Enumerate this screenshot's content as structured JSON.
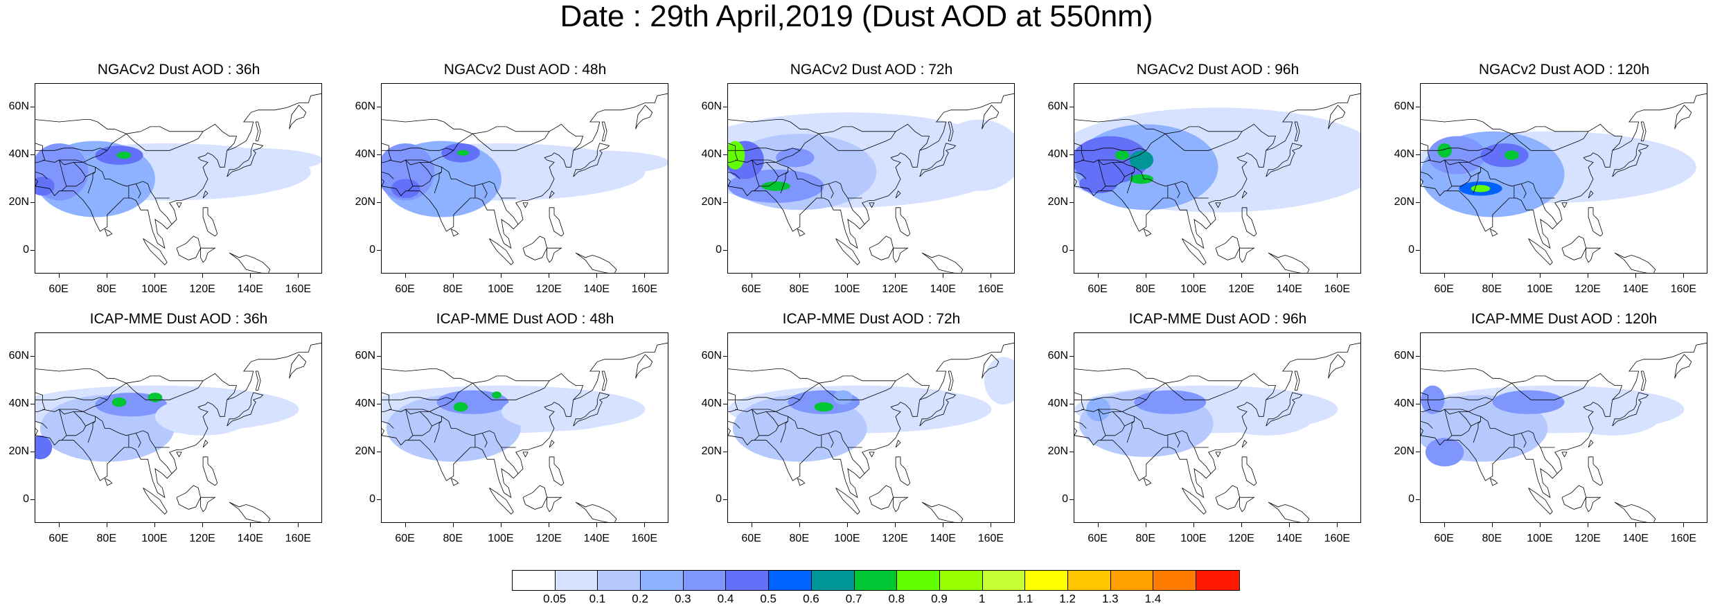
{
  "title": "Date : 29th April,2019 (Dust AOD at 550nm)",
  "panels": [
    {
      "title": "NGACv2 Dust AOD : 36h"
    },
    {
      "title": "NGACv2 Dust AOD : 48h"
    },
    {
      "title": "NGACv2 Dust AOD : 72h"
    },
    {
      "title": "NGACv2 Dust AOD : 96h"
    },
    {
      "title": "NGACv2 Dust AOD : 120h"
    },
    {
      "title": "ICAP-MME Dust AOD : 36h"
    },
    {
      "title": "ICAP-MME Dust AOD : 48h"
    },
    {
      "title": "ICAP-MME Dust AOD : 72h"
    },
    {
      "title": "ICAP-MME Dust AOD : 96h"
    },
    {
      "title": "ICAP-MME Dust AOD : 120h"
    }
  ],
  "map_extent": {
    "lon": [
      50,
      170
    ],
    "lat": [
      -10,
      70
    ]
  },
  "lat_ticks": [
    {
      "value": 60,
      "label": "60N"
    },
    {
      "value": 40,
      "label": "40N"
    },
    {
      "value": 20,
      "label": "20N"
    },
    {
      "value": 0,
      "label": "0"
    }
  ],
  "lon_ticks": [
    {
      "value": 60,
      "label": "60E"
    },
    {
      "value": 80,
      "label": "80E"
    },
    {
      "value": 100,
      "label": "100E"
    },
    {
      "value": 120,
      "label": "120E"
    },
    {
      "value": 140,
      "label": "140E"
    },
    {
      "value": 160,
      "label": "160E"
    }
  ],
  "colorbar": {
    "colors": [
      "#ffffff",
      "#d6e2ff",
      "#b5c9ff",
      "#8eb2ff",
      "#7f96ff",
      "#6370f8",
      "#0063ff",
      "#009696",
      "#00c633",
      "#63ff00",
      "#96ff00",
      "#c6ff33",
      "#ffff00",
      "#ffc600",
      "#ffa000",
      "#ff7c00",
      "#ff1900"
    ],
    "labels": [
      "0.05",
      "0.1",
      "0.2",
      "0.3",
      "0.4",
      "0.5",
      "0.6",
      "0.7",
      "0.8",
      "0.9",
      "1",
      "1.1",
      "1.2",
      "1.3",
      "1.4"
    ]
  }
}
